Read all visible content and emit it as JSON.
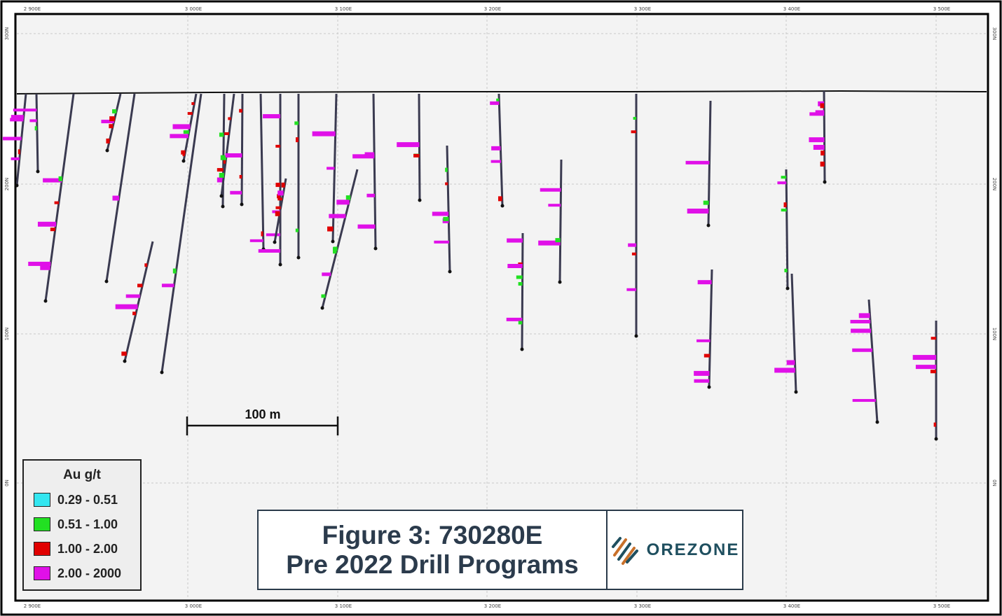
{
  "figure": {
    "title_line1": "Figure 3: 730280E",
    "title_line2": "Pre 2022 Drill Programs",
    "logo_text": "OREZONE"
  },
  "axes": {
    "easting_ticks": [
      "2 900E",
      "3 000E",
      "3 100E",
      "3 200E",
      "3 300E",
      "3 400E",
      "3 500E"
    ],
    "northing_ticks": [
      "300N",
      "200N",
      "100N",
      "0N"
    ]
  },
  "scale_bar": {
    "label": "100 m",
    "length_m": 100
  },
  "legend": {
    "title": "Au g/t",
    "items": [
      {
        "label": "0.29 - 0.51",
        "color": "#33e6f0"
      },
      {
        "label": "0.51 - 1.00",
        "color": "#22e022"
      },
      {
        "label": "1.00 - 2.00",
        "color": "#e00000"
      },
      {
        "label": "2.00 - 2000",
        "color": "#e010e8"
      }
    ]
  },
  "colors": {
    "background": "#f3f3f3",
    "grid": "#c9c9c9",
    "hole": "#3a3a50",
    "collar": "#7a4a2a",
    "title_text": "#2b3b4c"
  }
}
